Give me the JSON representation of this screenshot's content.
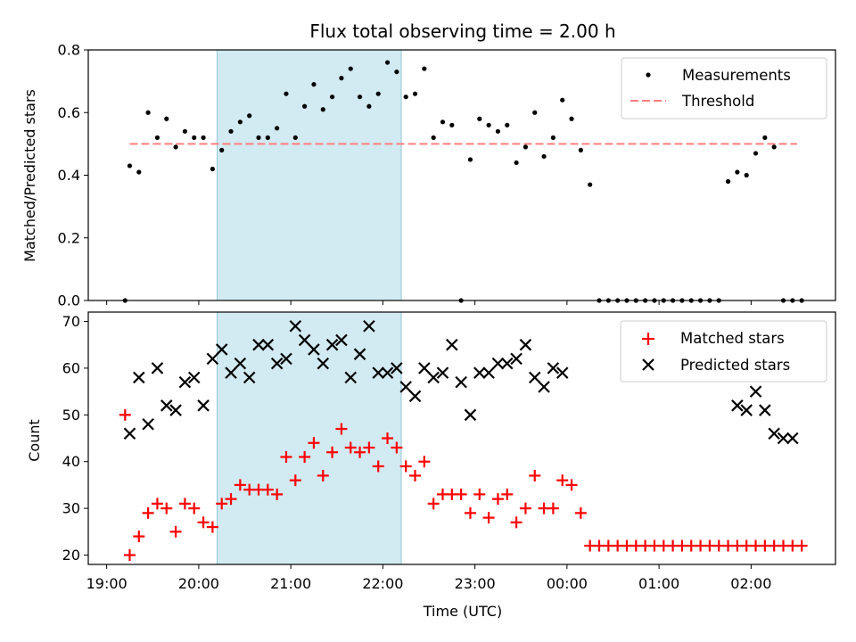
{
  "chart_data": [
    {
      "type": "scatter",
      "title": "Flux total observing time = 2.00 h",
      "ylabel": "Matched/Predicted stars",
      "xlabel": "",
      "ylim": [
        0,
        0.8
      ],
      "yticks": [
        "0.0",
        "0.2",
        "0.4",
        "0.6",
        "0.8"
      ],
      "legend": {
        "placement": "top-right"
      },
      "shaded_interval": {
        "start": "20:12",
        "end": "22:12",
        "color": "#add8e6"
      },
      "threshold": {
        "name": "Threshold",
        "value": 0.5,
        "start": "19:15",
        "end": "02:30",
        "color": "#ff7f7f"
      },
      "series": [
        {
          "name": "Measurements",
          "marker": "dot",
          "color": "#000000",
          "x": [
            "19:12",
            "19:15",
            "19:21",
            "19:27",
            "19:33",
            "19:39",
            "19:45",
            "19:51",
            "19:57",
            "20:03",
            "20:09",
            "20:15",
            "20:21",
            "20:27",
            "20:33",
            "20:39",
            "20:45",
            "20:51",
            "20:57",
            "21:03",
            "21:09",
            "21:15",
            "21:21",
            "21:27",
            "21:33",
            "21:39",
            "21:45",
            "21:51",
            "21:57",
            "22:03",
            "22:09",
            "22:15",
            "22:21",
            "22:27",
            "22:33",
            "22:39",
            "22:45",
            "22:51",
            "22:57",
            "23:03",
            "23:09",
            "23:15",
            "23:21",
            "23:27",
            "23:33",
            "23:39",
            "23:45",
            "23:51",
            "23:57",
            "00:03",
            "00:09",
            "00:15",
            "00:21",
            "00:27",
            "00:33",
            "00:39",
            "00:45",
            "00:51",
            "00:57",
            "01:03",
            "01:09",
            "01:15",
            "01:21",
            "01:27",
            "01:33",
            "01:39",
            "01:45",
            "01:51",
            "01:57",
            "02:03",
            "02:09",
            "02:15",
            "02:21",
            "02:27",
            "02:33"
          ],
          "y": [
            0.0,
            0.43,
            0.41,
            0.6,
            0.52,
            0.58,
            0.49,
            0.54,
            0.52,
            0.52,
            0.42,
            0.48,
            0.54,
            0.57,
            0.59,
            0.52,
            0.52,
            0.55,
            0.66,
            0.52,
            0.62,
            0.69,
            0.61,
            0.65,
            0.71,
            0.74,
            0.65,
            0.62,
            0.66,
            0.76,
            0.73,
            0.65,
            0.66,
            0.74,
            0.52,
            0.57,
            0.56,
            0.0,
            0.45,
            0.58,
            0.56,
            0.54,
            0.56,
            0.44,
            0.49,
            0.6,
            0.46,
            0.52,
            0.64,
            0.58,
            0.48,
            0.37,
            0.0,
            0.0,
            0.0,
            0.0,
            0.0,
            0.0,
            0.0,
            0.0,
            0.0,
            0.0,
            0.0,
            0.0,
            0.0,
            0.0,
            0.38,
            0.41,
            0.4,
            0.47,
            0.52,
            0.49,
            0.0,
            0.0,
            0.0
          ]
        }
      ]
    },
    {
      "type": "scatter",
      "title": "",
      "xlabel": "Time (UTC)",
      "ylabel": "Count",
      "ylim": [
        18,
        72
      ],
      "yticks": [
        "20",
        "30",
        "40",
        "50",
        "60",
        "70"
      ],
      "xticks": [
        "19:00",
        "20:00",
        "21:00",
        "22:00",
        "23:00",
        "00:00",
        "01:00",
        "02:00"
      ],
      "xlim": [
        "18:48",
        "02:55"
      ],
      "legend": {
        "placement": "top-right"
      },
      "series": [
        {
          "name": "Matched stars",
          "marker": "plus",
          "color": "#ff0000",
          "x": [
            "19:12",
            "19:15",
            "19:21",
            "19:27",
            "19:33",
            "19:39",
            "19:45",
            "19:51",
            "19:57",
            "20:03",
            "20:09",
            "20:15",
            "20:21",
            "20:27",
            "20:33",
            "20:39",
            "20:45",
            "20:51",
            "20:57",
            "21:03",
            "21:09",
            "21:15",
            "21:21",
            "21:27",
            "21:33",
            "21:39",
            "21:45",
            "21:51",
            "21:57",
            "22:03",
            "22:09",
            "22:15",
            "22:21",
            "22:27",
            "22:33",
            "22:39",
            "22:45",
            "22:51",
            "22:57",
            "23:03",
            "23:09",
            "23:15",
            "23:21",
            "23:27",
            "23:33",
            "23:39",
            "23:45",
            "23:51",
            "23:57",
            "00:03",
            "00:09",
            "00:15",
            "00:21",
            "00:27",
            "00:33",
            "00:39",
            "00:45",
            "00:51",
            "00:57",
            "01:03",
            "01:09",
            "01:15",
            "01:21",
            "01:27",
            "01:33",
            "01:39",
            "01:45",
            "01:51",
            "01:57",
            "02:03",
            "02:09",
            "02:15",
            "02:21",
            "02:27",
            "02:33"
          ],
          "y": [
            50,
            20,
            24,
            29,
            31,
            30,
            25,
            31,
            30,
            27,
            26,
            31,
            32,
            35,
            34,
            34,
            34,
            33,
            41,
            36,
            41,
            44,
            37,
            42,
            47,
            43,
            42,
            43,
            39,
            45,
            43,
            39,
            37,
            40,
            31,
            33,
            33,
            33,
            29,
            33,
            28,
            32,
            33,
            27,
            30,
            37,
            30,
            30,
            36,
            35,
            29,
            22,
            22,
            22,
            22,
            22,
            22,
            22,
            22,
            22,
            22,
            22,
            22,
            22,
            22,
            22,
            22,
            22,
            22,
            22,
            22,
            22,
            22,
            22,
            22
          ]
        },
        {
          "name": "Predicted stars",
          "marker": "x",
          "color": "#000000",
          "x": [
            "19:15",
            "19:21",
            "19:27",
            "19:33",
            "19:39",
            "19:45",
            "19:51",
            "19:57",
            "20:03",
            "20:09",
            "20:15",
            "20:21",
            "20:27",
            "20:33",
            "20:39",
            "20:45",
            "20:51",
            "20:57",
            "21:03",
            "21:09",
            "21:15",
            "21:21",
            "21:27",
            "21:33",
            "21:39",
            "21:45",
            "21:51",
            "21:57",
            "22:03",
            "22:09",
            "22:15",
            "22:21",
            "22:27",
            "22:33",
            "22:39",
            "22:45",
            "22:51",
            "22:57",
            "23:03",
            "23:09",
            "23:15",
            "23:21",
            "23:27",
            "23:33",
            "23:39",
            "23:45",
            "23:51",
            "23:57",
            "01:51",
            "01:57",
            "02:03",
            "02:09",
            "02:15",
            "02:21",
            "02:27"
          ],
          "y": [
            46,
            58,
            48,
            60,
            52,
            51,
            57,
            58,
            52,
            62,
            64,
            59,
            61,
            58,
            65,
            65,
            61,
            62,
            69,
            66,
            64,
            61,
            65,
            66,
            58,
            63,
            69,
            59,
            59,
            60,
            56,
            54,
            60,
            58,
            59,
            65,
            57,
            50,
            59,
            59,
            61,
            61,
            62,
            65,
            58,
            56,
            60,
            59,
            52,
            51,
            55,
            51,
            46,
            45,
            45
          ]
        }
      ]
    }
  ]
}
